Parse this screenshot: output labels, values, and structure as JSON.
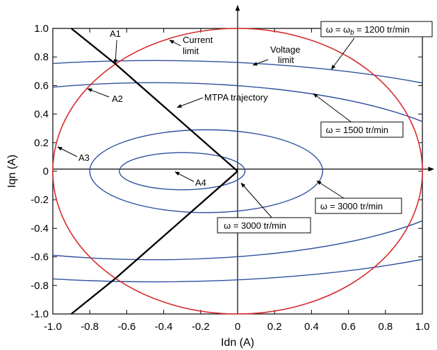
{
  "chart_data": {
    "type": "line",
    "xlabel": "Idn (A)",
    "ylabel": "Iqn (A)",
    "xlim": [
      -1.0,
      1.0
    ],
    "ylim": [
      -1.0,
      1.0
    ],
    "xticks": [
      "-1.0",
      "-0.8",
      "-0.6",
      "-0.4",
      "-0.2",
      "0",
      "0.2",
      "0.4",
      "0.6",
      "0.8",
      "1.0"
    ],
    "yticks": [
      "1.0",
      "0.8",
      "0.6",
      "0.4",
      "0.2",
      "0",
      "-0.2",
      "-0.4",
      "-0.6",
      "-0.8",
      "-1.0"
    ],
    "colors": {
      "current_limit": "#d62a2a",
      "voltage_limit": "#2e4f9e",
      "mtpa": "#000000"
    },
    "current_limit": {
      "center": [
        0,
        0
      ],
      "radius": 1.0
    },
    "mtpa_points": [
      {
        "x": 0.0,
        "y": 0.0
      },
      {
        "x": -0.66,
        "y": 0.75
      },
      {
        "x": -0.9,
        "y": 1.0
      },
      {
        "x": -0.66,
        "y": -0.75
      },
      {
        "x": -0.9,
        "y": -1.0
      }
    ],
    "voltage_ellipses": [
      {
        "label": "ω = ω_b = 1200 tr/min",
        "center_x": -0.45,
        "half_width": 2.4,
        "half_height": 0.775
      },
      {
        "label": "ω = 1500 tr/min",
        "center_x": -0.45,
        "half_width": 1.75,
        "half_height": 0.62
      },
      {
        "label": "ω = 3000 tr/min",
        "center_x": -0.17,
        "half_width": 0.63,
        "half_height": 0.29
      },
      {
        "label": "ω = 3000 tr/min",
        "center_x": -0.3,
        "half_width": 0.34,
        "half_height": 0.13
      }
    ],
    "annotations": {
      "a1": "A1",
      "a2": "A2",
      "a3": "A3",
      "a4": "A4",
      "current_limit_1": "Current",
      "current_limit_2": "limit",
      "voltage_limit_1": "Voltage",
      "voltage_limit_2": "limit",
      "mtpa": "MTPA trajectory",
      "box_1200_a": "ω = ω",
      "box_1200_sub": "b",
      "box_1200_b": " = 1200 tr/min",
      "box_1500": "ω = 1500 tr/min",
      "box_3000_right": "ω = 3000 tr/min",
      "box_3000_bottom": "ω = 3000 tr/min"
    }
  }
}
